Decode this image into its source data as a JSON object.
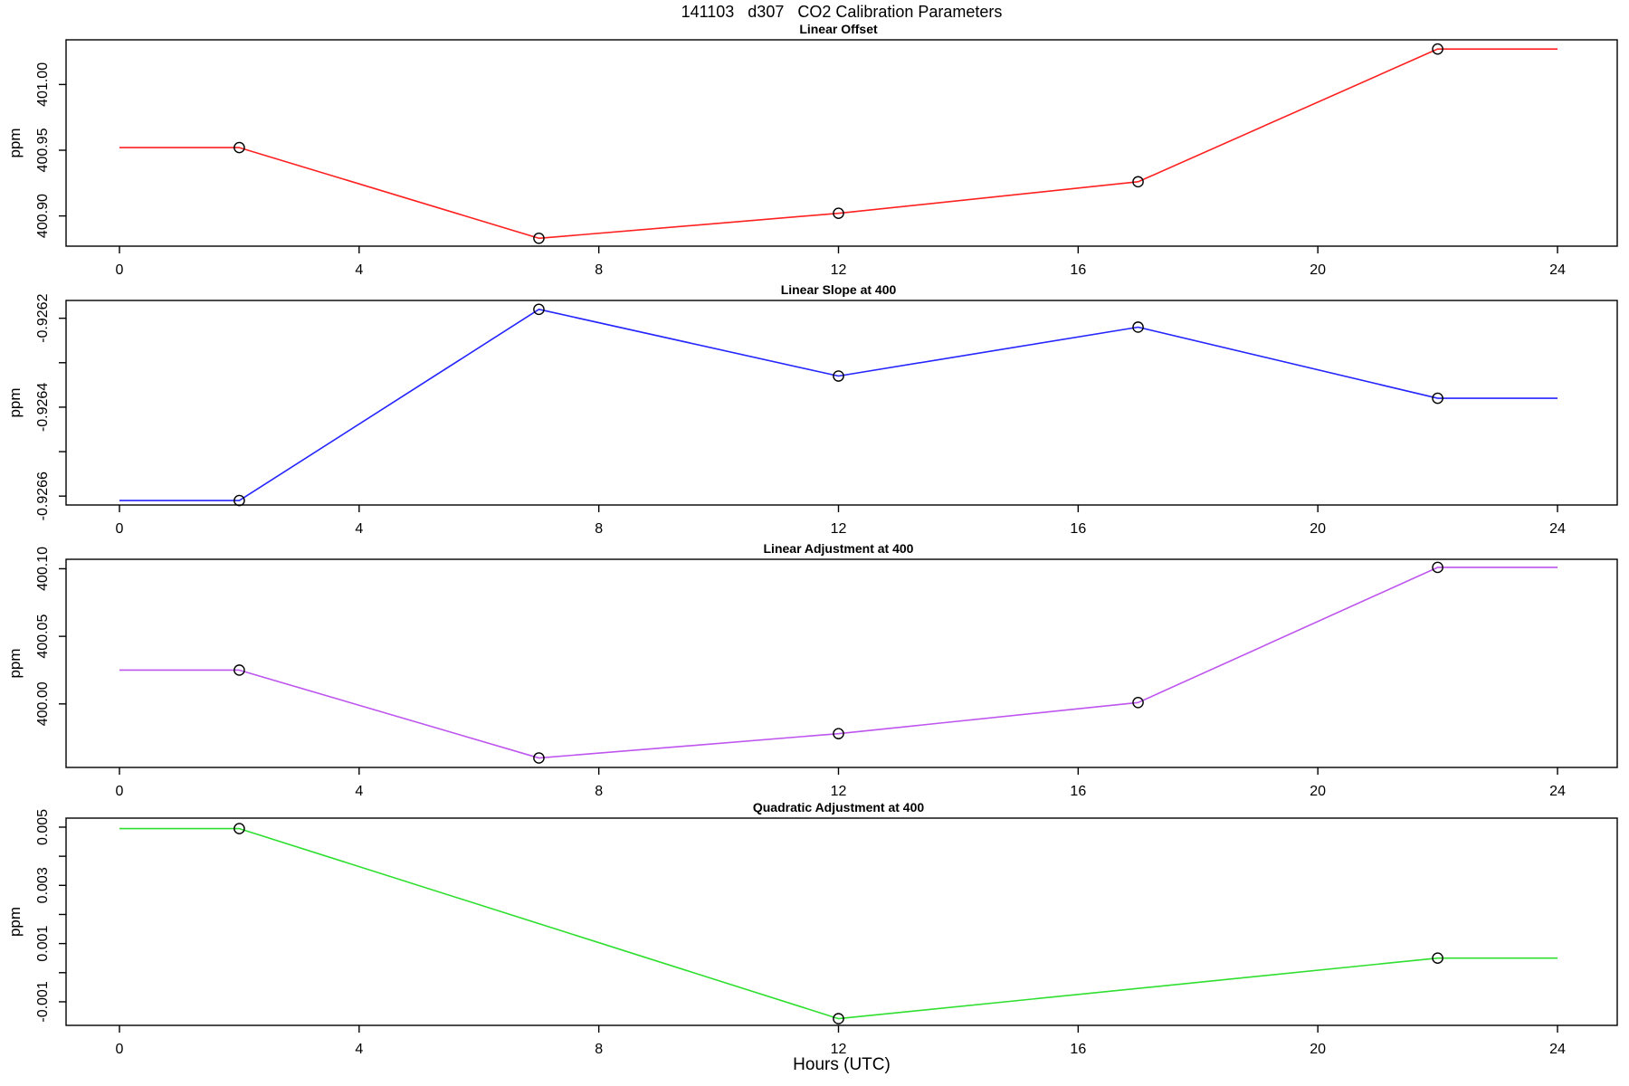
{
  "figure": {
    "title": "141103   d307   CO2 Calibration Parameters",
    "xlabel": "Hours (UTC)",
    "background": "#FFFFFF",
    "axis_color": "#000000",
    "marker_color": "#000000",
    "marker_shape": "open-circle"
  },
  "chart_data": [
    {
      "type": "line",
      "title": "Linear Offset",
      "ylabel": "ppm",
      "color": "#FF2020",
      "x": [
        0,
        2,
        7,
        12,
        17,
        22,
        24
      ],
      "y": [
        400.952,
        400.952,
        400.883,
        400.902,
        400.926,
        401.027,
        401.027
      ],
      "marker_x": [
        2,
        7,
        12,
        17,
        22
      ],
      "xlim": [
        0,
        24
      ],
      "ylim": [
        400.877,
        401.034
      ],
      "xticks": {
        "values": [
          0,
          4,
          8,
          12,
          16,
          20,
          24
        ],
        "labels": [
          "0",
          "4",
          "8",
          "12",
          "16",
          "20",
          "24"
        ]
      },
      "yticks": {
        "values": [
          400.9,
          400.95,
          401.0
        ],
        "labels": [
          "400.90",
          "400.95",
          "401.00"
        ]
      },
      "grid": false,
      "legend": null
    },
    {
      "type": "line",
      "title": "Linear Slope at 400",
      "ylabel": "ppm",
      "color": "#2525FF",
      "x": [
        0,
        2,
        7,
        12,
        17,
        22,
        24
      ],
      "y": [
        -0.92661,
        -0.92661,
        -0.92618,
        -0.92633,
        -0.92622,
        -0.92638,
        -0.92638
      ],
      "marker_x": [
        2,
        7,
        12,
        17,
        22
      ],
      "xlim": [
        0,
        24
      ],
      "ylim": [
        -0.92662,
        -0.92616
      ],
      "xticks": {
        "values": [
          0,
          4,
          8,
          12,
          16,
          20,
          24
        ],
        "labels": [
          "0",
          "4",
          "8",
          "12",
          "16",
          "20",
          "24"
        ]
      },
      "yticks": {
        "values": [
          -0.9266,
          -0.9265,
          -0.9264,
          -0.9263,
          -0.9262
        ],
        "labels": [
          "-0.9266",
          "",
          "-0.9264",
          "",
          "-0.9262"
        ]
      },
      "grid": false,
      "legend": null
    },
    {
      "type": "line",
      "title": "Linear Adjustment at 400",
      "ylabel": "ppm",
      "color": "#BE55EE",
      "x": [
        0,
        2,
        7,
        12,
        17,
        22,
        24
      ],
      "y": [
        400.025,
        400.025,
        399.96,
        399.978,
        400.001,
        400.101,
        400.101
      ],
      "marker_x": [
        2,
        7,
        12,
        17,
        22
      ],
      "xlim": [
        0,
        24
      ],
      "ylim": [
        399.953,
        400.107
      ],
      "xticks": {
        "values": [
          0,
          4,
          8,
          12,
          16,
          20,
          24
        ],
        "labels": [
          "0",
          "4",
          "8",
          "12",
          "16",
          "20",
          "24"
        ]
      },
      "yticks": {
        "values": [
          400.0,
          400.05,
          400.1
        ],
        "labels": [
          "400.00",
          "400.05",
          "400.10"
        ]
      },
      "grid": false,
      "legend": null
    },
    {
      "type": "line",
      "title": "Quadratic Adjustment at 400",
      "ylabel": "ppm",
      "color": "#2FDF2F",
      "x": [
        0,
        2,
        12,
        22,
        24
      ],
      "y": [
        0.00495,
        0.00495,
        -0.00158,
        0.0005,
        0.0005
      ],
      "marker_x": [
        2,
        12,
        22
      ],
      "xlim": [
        0,
        24
      ],
      "ylim": [
        -0.00181,
        0.00531
      ],
      "xticks": {
        "values": [
          0,
          4,
          8,
          12,
          16,
          20,
          24
        ],
        "labels": [
          "0",
          "4",
          "8",
          "12",
          "16",
          "20",
          "24"
        ]
      },
      "yticks": {
        "values": [
          -0.001,
          0.0,
          0.001,
          0.002,
          0.003,
          0.004,
          0.005
        ],
        "labels": [
          "-0.001",
          "",
          "0.001",
          "",
          "0.003",
          "",
          "0.005"
        ]
      },
      "grid": false,
      "legend": null
    }
  ]
}
